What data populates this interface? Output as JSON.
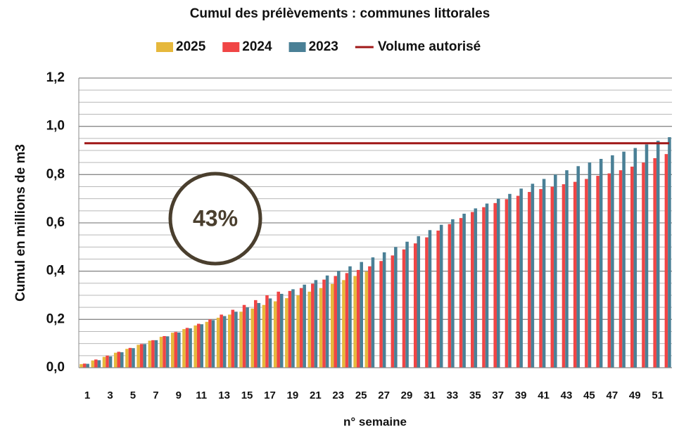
{
  "chart_data": {
    "type": "bar",
    "title": "Cumul des prélèvements : communes littorales",
    "x_label": "n° semaine",
    "y_label": "Cumul en millions de m3",
    "categories": [
      1,
      null,
      3,
      null,
      5,
      null,
      7,
      null,
      9,
      null,
      11,
      null,
      13,
      null,
      15,
      null,
      17,
      null,
      19,
      null,
      21,
      null,
      23,
      null,
      25,
      null,
      27,
      null,
      29,
      null,
      31,
      null,
      33,
      null,
      35,
      null,
      37,
      null,
      39,
      null,
      41,
      null,
      43,
      null,
      45,
      null,
      47,
      null,
      49,
      null,
      51,
      null
    ],
    "series": [
      {
        "name": "2025",
        "color": "#e6b83c",
        "values": [
          0.015,
          0.03,
          0.045,
          0.062,
          0.078,
          0.095,
          0.112,
          0.128,
          0.145,
          0.16,
          0.175,
          0.19,
          0.207,
          0.22,
          0.232,
          0.245,
          0.26,
          0.275,
          0.288,
          0.3,
          0.315,
          0.33,
          0.347,
          0.363,
          0.38,
          0.398,
          null,
          null,
          null,
          null,
          null,
          null,
          null,
          null,
          null,
          null,
          null,
          null,
          null,
          null,
          null,
          null,
          null,
          null,
          null,
          null,
          null,
          null,
          null,
          null,
          null,
          null
        ]
      },
      {
        "name": "2024",
        "color": "#f04545",
        "values": [
          0.017,
          0.034,
          0.05,
          0.066,
          0.082,
          0.098,
          0.114,
          0.131,
          0.148,
          0.165,
          0.182,
          0.2,
          0.22,
          0.24,
          0.26,
          0.28,
          0.3,
          0.315,
          0.318,
          0.33,
          0.348,
          0.365,
          0.38,
          0.392,
          0.405,
          0.42,
          0.442,
          0.465,
          0.49,
          0.515,
          0.54,
          0.568,
          0.595,
          0.62,
          0.645,
          0.665,
          0.682,
          0.698,
          0.712,
          0.728,
          0.74,
          0.75,
          0.76,
          0.77,
          0.782,
          0.795,
          0.805,
          0.818,
          0.833,
          0.85,
          0.868,
          0.885
        ]
      },
      {
        "name": "2023",
        "color": "#4a8096",
        "values": [
          0.016,
          0.031,
          0.047,
          0.064,
          0.081,
          0.098,
          0.114,
          0.13,
          0.146,
          0.163,
          0.18,
          0.197,
          0.214,
          0.232,
          0.25,
          0.268,
          0.287,
          0.306,
          0.325,
          0.344,
          0.363,
          0.382,
          0.401,
          0.42,
          0.438,
          0.457,
          0.478,
          0.5,
          0.522,
          0.545,
          0.57,
          0.592,
          0.615,
          0.638,
          0.66,
          0.68,
          0.7,
          0.72,
          0.742,
          0.762,
          0.782,
          0.8,
          0.818,
          0.835,
          0.85,
          0.865,
          0.88,
          0.895,
          0.91,
          0.925,
          0.94,
          0.955
        ]
      }
    ],
    "reference_line": {
      "name": "Volume autorisé",
      "value": 0.93,
      "color": "#a01818"
    },
    "annotations": [
      "43%"
    ],
    "ylim": [
      0,
      1.2
    ],
    "yticks": [
      {
        "value": 0,
        "label": "0,0"
      },
      {
        "value": 0.2,
        "label": "0,2"
      },
      {
        "value": 0.4,
        "label": "0,4"
      },
      {
        "value": 0.6,
        "label": "0,6"
      },
      {
        "value": 0.8,
        "label": "0,8"
      },
      {
        "value": 1.0,
        "label": "1,0"
      },
      {
        "value": 1.2,
        "label": "1,2"
      }
    ],
    "minor_yticks": [
      0.05,
      0.1,
      0.15,
      0.25,
      0.3,
      0.35,
      0.45,
      0.5,
      0.55,
      0.65,
      0.7,
      0.75,
      0.85,
      0.9,
      0.95,
      1.05,
      1.1,
      1.15
    ],
    "grid": true
  }
}
